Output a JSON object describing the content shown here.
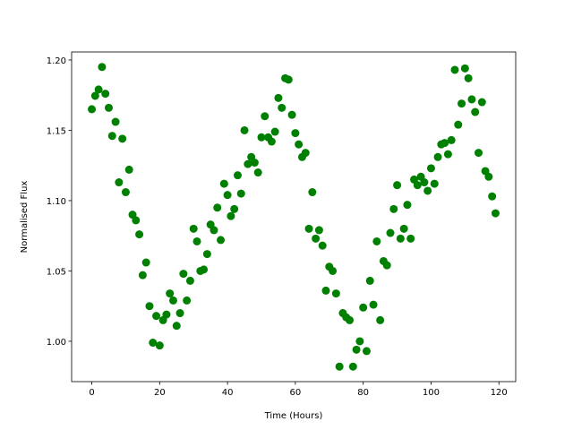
{
  "chart_data": {
    "type": "scatter",
    "x_label": "Time (Hours)",
    "y_label": "Normalised Flux",
    "color": "#008000",
    "x": [
      0,
      1,
      2,
      3,
      4,
      5,
      6,
      7,
      8,
      9,
      10,
      11,
      12,
      13,
      14,
      15,
      16,
      17,
      18,
      19,
      20,
      21,
      22,
      23,
      24,
      25,
      26,
      27,
      28,
      29,
      30,
      31,
      32,
      33,
      34,
      35,
      36,
      37,
      38,
      39,
      40,
      41,
      42,
      43,
      44,
      45,
      46,
      47,
      48,
      49,
      50,
      51,
      52,
      53,
      54,
      55,
      56,
      57,
      58,
      59,
      60,
      61,
      62,
      63,
      64,
      65,
      66,
      67,
      68,
      69,
      70,
      71,
      72,
      73,
      74,
      75,
      76,
      77,
      78,
      79,
      80,
      81,
      82,
      83,
      84,
      85,
      86,
      87,
      88,
      89,
      90,
      91,
      92,
      93,
      94,
      95,
      96,
      97,
      98,
      99,
      100,
      101,
      102,
      103,
      104,
      105,
      106,
      107,
      108,
      109,
      110,
      111,
      112,
      113,
      114,
      115,
      116,
      117,
      118,
      119
    ],
    "values": [
      1.165,
      1.1745,
      1.179,
      1.195,
      1.176,
      1.166,
      1.146,
      1.156,
      1.113,
      1.144,
      1.106,
      1.122,
      1.09,
      1.086,
      1.076,
      1.047,
      1.056,
      1.025,
      0.999,
      1.018,
      0.997,
      1.015,
      1.019,
      1.034,
      1.029,
      1.011,
      1.02,
      1.048,
      1.029,
      1.043,
      1.08,
      1.071,
      1.05,
      1.051,
      1.062,
      1.083,
      1.079,
      1.095,
      1.072,
      1.112,
      1.104,
      1.089,
      1.094,
      1.118,
      1.105,
      1.15,
      1.126,
      1.131,
      1.127,
      1.12,
      1.145,
      1.16,
      1.145,
      1.142,
      1.149,
      1.173,
      1.166,
      1.187,
      1.186,
      1.161,
      1.148,
      1.14,
      1.131,
      1.134,
      1.08,
      1.106,
      1.073,
      1.079,
      1.068,
      1.036,
      1.053,
      1.05,
      1.034,
      0.982,
      1.02,
      1.017,
      1.015,
      0.982,
      0.994,
      1.0,
      1.024,
      0.993,
      1.043,
      1.026,
      1.071,
      1.015,
      1.057,
      1.054,
      1.077,
      1.094,
      1.111,
      1.073,
      1.08,
      1.097,
      1.073,
      1.115,
      1.111,
      1.117,
      1.113,
      1.107,
      1.123,
      1.112,
      1.131,
      1.14,
      1.141,
      1.133,
      1.143,
      1.193,
      1.154,
      1.169,
      1.194,
      1.187,
      1.172,
      1.163,
      1.134,
      1.17,
      1.121,
      1.117,
      1.103,
      1.091
    ],
    "xlim": [
      -5.95,
      124.95
    ],
    "ylim": [
      0.9713,
      1.2057
    ],
    "xticks": [
      0,
      20,
      40,
      60,
      80,
      100,
      120
    ],
    "yticks": [
      {
        "value": 1.0,
        "label": "1.00"
      },
      {
        "value": 1.05,
        "label": "1.05"
      },
      {
        "value": 1.1,
        "label": "1.10"
      },
      {
        "value": 1.15,
        "label": "1.15"
      },
      {
        "value": 1.2,
        "label": "1.20"
      }
    ]
  }
}
